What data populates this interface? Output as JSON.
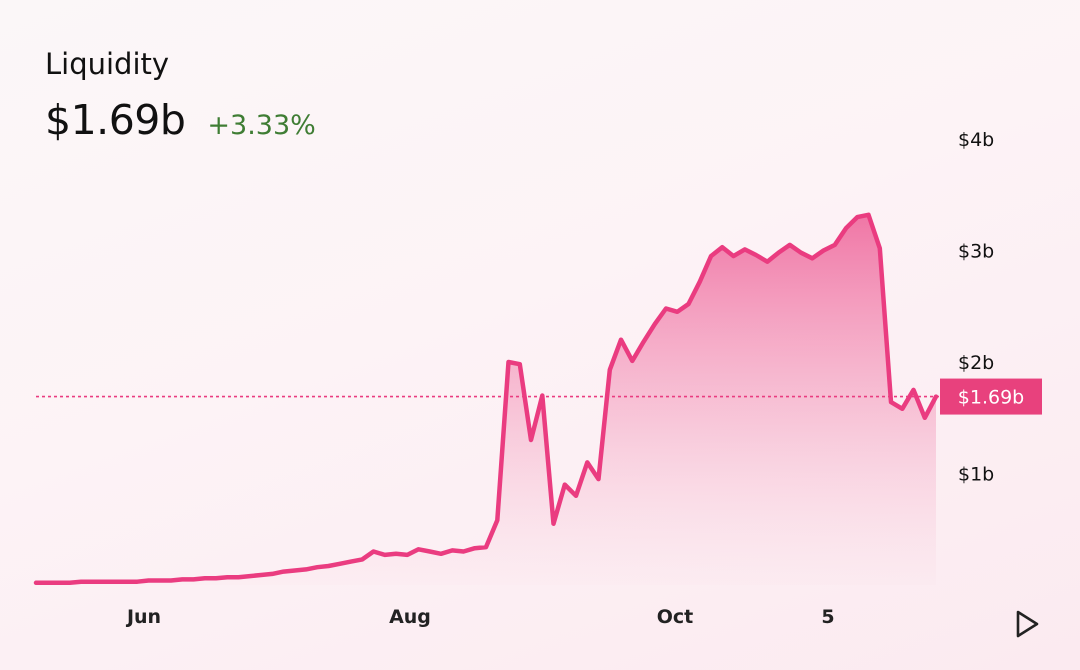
{
  "metric": {
    "label": "Liquidity",
    "value": "$1.69b",
    "change": "+3.33%"
  },
  "chart_data": {
    "type": "area",
    "title": "",
    "xlabel": "",
    "ylabel": "",
    "x_tick_labels": [
      "Jun",
      "Aug",
      "Oct",
      "5"
    ],
    "y_tick_labels": [
      "$1b",
      "$2b",
      "$3b",
      "$4b"
    ],
    "ylim": [
      0,
      4.1
    ],
    "current_value": 1.69,
    "current_value_label": "$1.69b",
    "series": [
      {
        "values": [
          0.02,
          0.02,
          0.02,
          0.02,
          0.03,
          0.03,
          0.03,
          0.03,
          0.03,
          0.03,
          0.04,
          0.04,
          0.04,
          0.05,
          0.05,
          0.06,
          0.06,
          0.07,
          0.07,
          0.08,
          0.09,
          0.1,
          0.12,
          0.13,
          0.14,
          0.16,
          0.17,
          0.19,
          0.21,
          0.23,
          0.3,
          0.27,
          0.28,
          0.27,
          0.32,
          0.3,
          0.28,
          0.31,
          0.3,
          0.33,
          0.34,
          0.58,
          2.0,
          1.98,
          1.3,
          1.7,
          0.55,
          0.9,
          0.8,
          1.1,
          0.95,
          1.93,
          2.2,
          2.01,
          2.18,
          2.34,
          2.48,
          2.45,
          2.52,
          2.72,
          2.95,
          3.03,
          2.95,
          3.01,
          2.96,
          2.9,
          2.98,
          3.05,
          2.98,
          2.93,
          3.0,
          3.05,
          3.2,
          3.3,
          3.32,
          3.02,
          1.64,
          1.58,
          1.75,
          1.5,
          1.69
        ]
      }
    ],
    "colors": {
      "line": "#ea3c80",
      "fill": "#ea3c80",
      "badge": "#e8417d",
      "change_positive": "#3f7d34"
    }
  }
}
